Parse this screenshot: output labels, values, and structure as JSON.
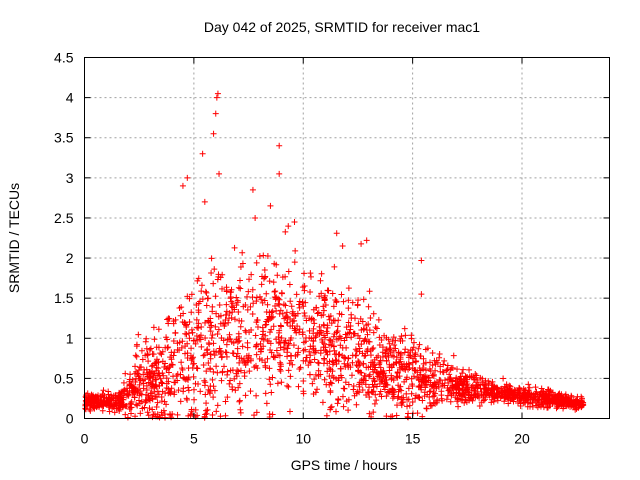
{
  "chart_data": {
    "type": "scatter",
    "title": "Day 042 of 2025, SRMTID for receiver mac1",
    "xlabel": "GPS time / hours",
    "ylabel": "SRMTID / TECUs",
    "xlim": [
      0,
      24
    ],
    "ylim": [
      0,
      4.5
    ],
    "grid": true,
    "marker": "+",
    "marker_color": "#ff0000",
    "x_ticks": [
      0,
      5,
      10,
      15,
      20
    ],
    "x_tick_labels": [
      "0",
      "5",
      "10",
      "15",
      "20"
    ],
    "y_ticks": [
      0,
      0.5,
      1,
      1.5,
      2,
      2.5,
      3,
      3.5,
      4,
      4.5
    ],
    "y_tick_labels": [
      "0",
      "0.5",
      "1",
      "1.5",
      "2",
      "2.5",
      "3",
      "3.5",
      "4",
      "4.5"
    ],
    "series": [
      {
        "name": "SRMTID",
        "envelope_hours": [
          0,
          1,
          1.7,
          2.5,
          3.5,
          4.5,
          5.5,
          6.5,
          7.5,
          8.5,
          9.5,
          10.5,
          11.5,
          12.5,
          13.5,
          14.5,
          15.5,
          17,
          19,
          21,
          22.8
        ],
        "envelope_median": [
          0.22,
          0.2,
          0.22,
          0.45,
          0.45,
          0.8,
          1.0,
          1.0,
          1.0,
          1.15,
          1.1,
          0.95,
          0.9,
          0.8,
          0.55,
          0.55,
          0.5,
          0.4,
          0.3,
          0.25,
          0.18
        ],
        "envelope_spread": [
          0.07,
          0.07,
          0.1,
          0.4,
          0.4,
          0.7,
          0.8,
          0.6,
          0.7,
          0.7,
          0.6,
          0.6,
          0.6,
          0.55,
          0.45,
          0.4,
          0.3,
          0.15,
          0.1,
          0.08,
          0.05
        ],
        "peaks": [
          {
            "x": 4.5,
            "y": 2.9
          },
          {
            "x": 4.7,
            "y": 3.0
          },
          {
            "x": 5.4,
            "y": 3.3
          },
          {
            "x": 5.5,
            "y": 2.7
          },
          {
            "x": 5.9,
            "y": 3.55
          },
          {
            "x": 6.0,
            "y": 3.8
          },
          {
            "x": 6.05,
            "y": 4.0
          },
          {
            "x": 6.1,
            "y": 4.05
          },
          {
            "x": 6.15,
            "y": 3.05
          },
          {
            "x": 7.7,
            "y": 2.85
          },
          {
            "x": 7.8,
            "y": 2.5
          },
          {
            "x": 8.5,
            "y": 2.65
          },
          {
            "x": 8.9,
            "y": 3.4
          },
          {
            "x": 8.9,
            "y": 3.05
          },
          {
            "x": 9.6,
            "y": 2.45
          },
          {
            "x": 11.8,
            "y": 2.15
          },
          {
            "x": 12.9,
            "y": 2.22
          },
          {
            "x": 15.4,
            "y": 1.97
          },
          {
            "x": 15.4,
            "y": 1.55
          },
          {
            "x": 8.6,
            "y": 0.05
          },
          {
            "x": 13.1,
            "y": 0.02
          },
          {
            "x": 13.2,
            "y": 0.08
          }
        ]
      }
    ]
  }
}
